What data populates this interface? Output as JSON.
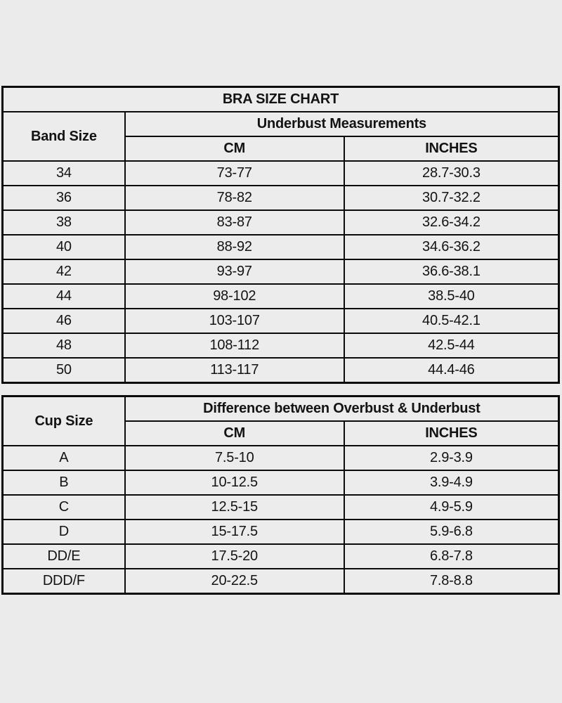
{
  "title": "BRA SIZE CHART",
  "colors": {
    "page_background": "#ebebeb",
    "header_background": "#e9e4c9",
    "cell_background": "#ececec",
    "border": "#0b0b0b",
    "text": "#131313"
  },
  "band_table": {
    "corner_header": "Band Size",
    "group_header": "Underbust Measurements",
    "col_headers": [
      "CM",
      "INCHES"
    ],
    "rows": [
      {
        "band": "34",
        "cm": "73-77",
        "inches": "28.7-30.3"
      },
      {
        "band": "36",
        "cm": "78-82",
        "inches": "30.7-32.2"
      },
      {
        "band": "38",
        "cm": "83-87",
        "inches": "32.6-34.2"
      },
      {
        "band": "40",
        "cm": "88-92",
        "inches": "34.6-36.2"
      },
      {
        "band": "42",
        "cm": "93-97",
        "inches": "36.6-38.1"
      },
      {
        "band": "44",
        "cm": "98-102",
        "inches": "38.5-40"
      },
      {
        "band": "46",
        "cm": "103-107",
        "inches": "40.5-42.1"
      },
      {
        "band": "48",
        "cm": "108-112",
        "inches": "42.5-44"
      },
      {
        "band": "50",
        "cm": "113-117",
        "inches": "44.4-46"
      }
    ]
  },
  "cup_table": {
    "corner_header": "Cup Size",
    "group_header": "Difference between Overbust & Underbust",
    "col_headers": [
      "CM",
      "INCHES"
    ],
    "rows": [
      {
        "cup": "A",
        "cm": "7.5-10",
        "inches": "2.9-3.9"
      },
      {
        "cup": "B",
        "cm": "10-12.5",
        "inches": "3.9-4.9"
      },
      {
        "cup": "C",
        "cm": "12.5-15",
        "inches": "4.9-5.9"
      },
      {
        "cup": "D",
        "cm": "15-17.5",
        "inches": "5.9-6.8"
      },
      {
        "cup": "DD/E",
        "cm": "17.5-20",
        "inches": "6.8-7.8"
      },
      {
        "cup": "DDD/F",
        "cm": "20-22.5",
        "inches": "7.8-8.8"
      }
    ]
  }
}
